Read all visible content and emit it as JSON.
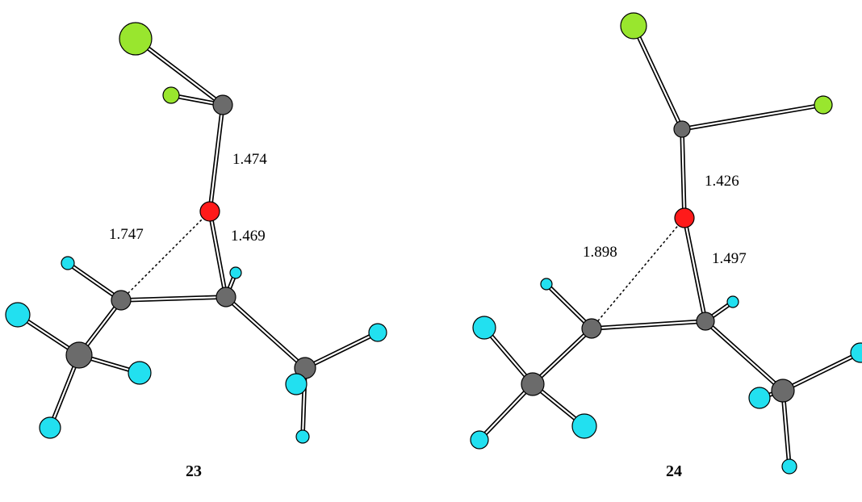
{
  "colors": {
    "carbon": "#6b6b6b",
    "oxygen": "#ff1a1a",
    "fluorine": "#22e0f0",
    "chlorine": "#99e62e"
  },
  "structures": [
    {
      "label": "23",
      "distances": [
        "1.474",
        "1.469",
        "1.747"
      ]
    },
    {
      "label": "24",
      "distances": [
        "1.426",
        "1.497",
        "1.898"
      ]
    }
  ]
}
